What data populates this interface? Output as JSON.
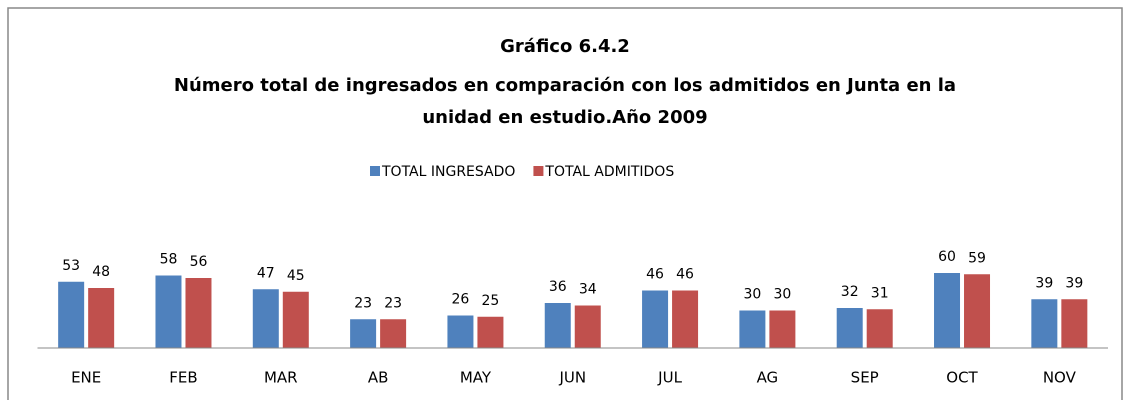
{
  "chart_data": {
    "type": "bar",
    "title": "Gráfico 6.4.2",
    "subtitle": [
      "Número total de ingresados en comparación con los admitidos en Junta en la",
      "unidad en estudio.Año 2009"
    ],
    "categories": [
      "ENE",
      "FEB",
      "MAR",
      "AB",
      "MAY",
      "JUN",
      "JUL",
      "AG",
      "SEP",
      "OCT",
      "NOV"
    ],
    "series": [
      {
        "name": "TOTAL INGRESADO",
        "color": "#4f81bd",
        "values": [
          53,
          58,
          47,
          23,
          26,
          36,
          46,
          30,
          32,
          60,
          39
        ]
      },
      {
        "name": "TOTAL ADMITIDOS",
        "color": "#c0504d",
        "values": [
          48,
          56,
          45,
          23,
          25,
          34,
          46,
          30,
          31,
          59,
          39
        ]
      }
    ],
    "ylim": [
      0,
      100
    ],
    "legend": "top"
  }
}
